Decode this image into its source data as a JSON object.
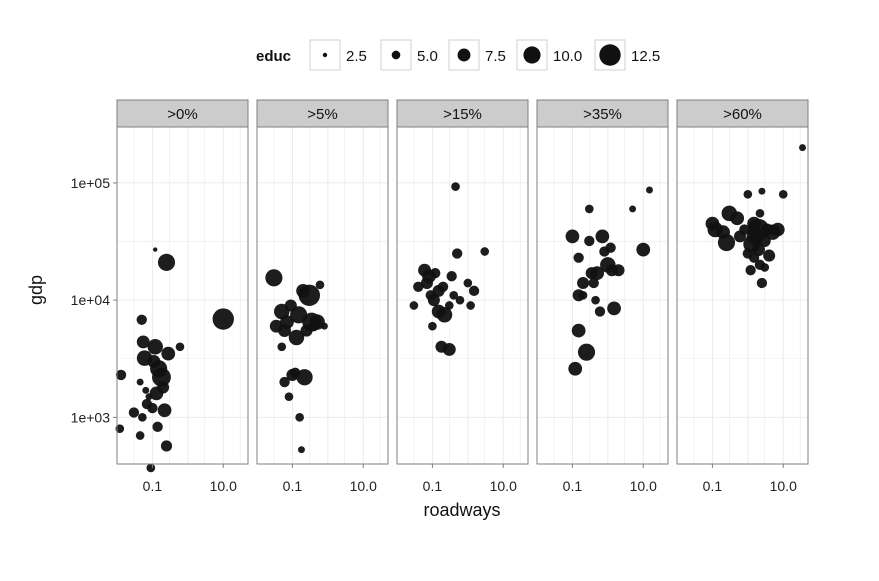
{
  "chart_data": {
    "type": "scatter",
    "xlabel": "roadways",
    "ylabel": "gdp",
    "x_scale": "log10",
    "y_scale": "log10",
    "x_range": [
      0.01,
      50
    ],
    "y_range": [
      400,
      300000
    ],
    "x_ticks": [
      {
        "value": 0.1,
        "label": "0.1"
      },
      {
        "value": 10,
        "label": "10.0"
      }
    ],
    "y_ticks": [
      {
        "value": 1000,
        "label": "1e+03"
      },
      {
        "value": 10000,
        "label": "1e+04"
      },
      {
        "value": 100000,
        "label": "1e+05"
      }
    ],
    "grid": true,
    "legend": {
      "title": "educ",
      "placement": "top",
      "values": [
        2.5,
        5.0,
        7.5,
        10.0,
        12.5
      ],
      "labels": [
        "2.5",
        "5.0",
        "7.5",
        "10.0",
        "12.5"
      ]
    },
    "colors": {
      "point": "#111111",
      "panel_background": "#ffffff",
      "grid": "#ebebeb",
      "strip_background": "#cccccc",
      "frame": "#7f7f7f"
    },
    "panels": [
      {
        "label": ">0%",
        "points": [
          {
            "x": 0.013,
            "y": 2300,
            "educ": 6
          },
          {
            "x": 0.012,
            "y": 800,
            "educ": 5
          },
          {
            "x": 0.03,
            "y": 1100,
            "educ": 6
          },
          {
            "x": 0.045,
            "y": 700,
            "educ": 5
          },
          {
            "x": 0.052,
            "y": 1000,
            "educ": 5
          },
          {
            "x": 0.05,
            "y": 6800,
            "educ": 6
          },
          {
            "x": 0.055,
            "y": 4400,
            "educ": 7.5
          },
          {
            "x": 0.06,
            "y": 3200,
            "educ": 9
          },
          {
            "x": 0.045,
            "y": 2000,
            "educ": 4
          },
          {
            "x": 0.065,
            "y": 1700,
            "educ": 4
          },
          {
            "x": 0.07,
            "y": 1300,
            "educ": 6
          },
          {
            "x": 0.08,
            "y": 1500,
            "educ": 4
          },
          {
            "x": 0.09,
            "y": 370,
            "educ": 5
          },
          {
            "x": 0.1,
            "y": 1200,
            "educ": 6
          },
          {
            "x": 0.11,
            "y": 3000,
            "educ": 7.5
          },
          {
            "x": 0.12,
            "y": 4000,
            "educ": 9
          },
          {
            "x": 0.13,
            "y": 1600,
            "educ": 8
          },
          {
            "x": 0.15,
            "y": 2600,
            "educ": 10
          },
          {
            "x": 0.18,
            "y": 2200,
            "educ": 11
          },
          {
            "x": 0.2,
            "y": 1800,
            "educ": 7
          },
          {
            "x": 0.14,
            "y": 830,
            "educ": 6
          },
          {
            "x": 0.12,
            "y": 27000,
            "educ": 2.5
          },
          {
            "x": 0.22,
            "y": 1150,
            "educ": 8
          },
          {
            "x": 0.25,
            "y": 570,
            "educ": 6.5
          },
          {
            "x": 0.28,
            "y": 3500,
            "educ": 8
          },
          {
            "x": 0.25,
            "y": 21000,
            "educ": 10
          },
          {
            "x": 0.6,
            "y": 4000,
            "educ": 5
          },
          {
            "x": 10,
            "y": 6900,
            "educ": 12.5
          }
        ]
      },
      {
        "label": ">5%",
        "points": [
          {
            "x": 0.03,
            "y": 15500,
            "educ": 10
          },
          {
            "x": 0.035,
            "y": 6000,
            "educ": 7.5
          },
          {
            "x": 0.05,
            "y": 8000,
            "educ": 9
          },
          {
            "x": 0.05,
            "y": 4000,
            "educ": 5
          },
          {
            "x": 0.06,
            "y": 5500,
            "educ": 7.5
          },
          {
            "x": 0.06,
            "y": 2000,
            "educ": 6
          },
          {
            "x": 0.07,
            "y": 6500,
            "educ": 8
          },
          {
            "x": 0.08,
            "y": 1500,
            "educ": 5
          },
          {
            "x": 0.09,
            "y": 9000,
            "educ": 7
          },
          {
            "x": 0.1,
            "y": 2300,
            "educ": 7
          },
          {
            "x": 0.12,
            "y": 2400,
            "educ": 6
          },
          {
            "x": 0.13,
            "y": 4800,
            "educ": 9
          },
          {
            "x": 0.15,
            "y": 7500,
            "educ": 10
          },
          {
            "x": 0.16,
            "y": 1000,
            "educ": 5
          },
          {
            "x": 0.18,
            "y": 530,
            "educ": 4
          },
          {
            "x": 0.2,
            "y": 12000,
            "educ": 8
          },
          {
            "x": 0.22,
            "y": 2200,
            "educ": 9.5
          },
          {
            "x": 0.25,
            "y": 5500,
            "educ": 7
          },
          {
            "x": 0.3,
            "y": 11000,
            "educ": 12.5
          },
          {
            "x": 0.35,
            "y": 6500,
            "educ": 11
          },
          {
            "x": 0.4,
            "y": 6000,
            "educ": 6
          },
          {
            "x": 0.5,
            "y": 6500,
            "educ": 9
          },
          {
            "x": 0.6,
            "y": 13500,
            "educ": 5
          },
          {
            "x": 0.8,
            "y": 6000,
            "educ": 4
          }
        ]
      },
      {
        "label": ">15%",
        "points": [
          {
            "x": 0.03,
            "y": 9000,
            "educ": 5
          },
          {
            "x": 0.04,
            "y": 13000,
            "educ": 6
          },
          {
            "x": 0.06,
            "y": 18000,
            "educ": 7.5
          },
          {
            "x": 0.07,
            "y": 14000,
            "educ": 7
          },
          {
            "x": 0.08,
            "y": 16000,
            "educ": 8
          },
          {
            "x": 0.09,
            "y": 11000,
            "educ": 6
          },
          {
            "x": 0.1,
            "y": 6000,
            "educ": 5
          },
          {
            "x": 0.11,
            "y": 10000,
            "educ": 7
          },
          {
            "x": 0.12,
            "y": 17000,
            "educ": 6
          },
          {
            "x": 0.15,
            "y": 12000,
            "educ": 7
          },
          {
            "x": 0.15,
            "y": 8000,
            "educ": 8
          },
          {
            "x": 0.18,
            "y": 4000,
            "educ": 7
          },
          {
            "x": 0.2,
            "y": 13000,
            "educ": 6
          },
          {
            "x": 0.22,
            "y": 7500,
            "educ": 9
          },
          {
            "x": 0.3,
            "y": 9000,
            "educ": 5
          },
          {
            "x": 0.3,
            "y": 3800,
            "educ": 7.5
          },
          {
            "x": 0.35,
            "y": 16000,
            "educ": 6
          },
          {
            "x": 0.4,
            "y": 11000,
            "educ": 5
          },
          {
            "x": 0.45,
            "y": 93000,
            "educ": 5
          },
          {
            "x": 0.5,
            "y": 25000,
            "educ": 6
          },
          {
            "x": 0.6,
            "y": 10000,
            "educ": 5
          },
          {
            "x": 1.0,
            "y": 14000,
            "educ": 5
          },
          {
            "x": 1.2,
            "y": 9000,
            "educ": 5
          },
          {
            "x": 1.5,
            "y": 12000,
            "educ": 6
          },
          {
            "x": 3,
            "y": 26000,
            "educ": 5
          }
        ]
      },
      {
        "label": ">35%",
        "points": [
          {
            "x": 0.1,
            "y": 35000,
            "educ": 8
          },
          {
            "x": 0.12,
            "y": 2600,
            "educ": 8
          },
          {
            "x": 0.15,
            "y": 5500,
            "educ": 8
          },
          {
            "x": 0.15,
            "y": 23000,
            "educ": 6
          },
          {
            "x": 0.15,
            "y": 11000,
            "educ": 7
          },
          {
            "x": 0.2,
            "y": 14000,
            "educ": 7
          },
          {
            "x": 0.2,
            "y": 11000,
            "educ": 5
          },
          {
            "x": 0.25,
            "y": 3600,
            "educ": 10
          },
          {
            "x": 0.3,
            "y": 32000,
            "educ": 6
          },
          {
            "x": 0.3,
            "y": 60000,
            "educ": 5
          },
          {
            "x": 0.35,
            "y": 17000,
            "educ": 7
          },
          {
            "x": 0.4,
            "y": 14000,
            "educ": 6
          },
          {
            "x": 0.45,
            "y": 10000,
            "educ": 5
          },
          {
            "x": 0.5,
            "y": 17000,
            "educ": 8
          },
          {
            "x": 0.6,
            "y": 8000,
            "educ": 6
          },
          {
            "x": 0.7,
            "y": 35000,
            "educ": 8
          },
          {
            "x": 0.8,
            "y": 26000,
            "educ": 6
          },
          {
            "x": 1.0,
            "y": 20000,
            "educ": 9
          },
          {
            "x": 1.2,
            "y": 28000,
            "educ": 6
          },
          {
            "x": 1.3,
            "y": 18000,
            "educ": 7
          },
          {
            "x": 1.5,
            "y": 8500,
            "educ": 8
          },
          {
            "x": 2.0,
            "y": 18000,
            "educ": 7
          },
          {
            "x": 5,
            "y": 60000,
            "educ": 4
          },
          {
            "x": 10,
            "y": 27000,
            "educ": 8
          },
          {
            "x": 15,
            "y": 87000,
            "educ": 4
          }
        ]
      },
      {
        "label": ">60%",
        "points": [
          {
            "x": 0.1,
            "y": 45000,
            "educ": 8
          },
          {
            "x": 0.12,
            "y": 40000,
            "educ": 9
          },
          {
            "x": 0.2,
            "y": 38000,
            "educ": 8
          },
          {
            "x": 0.25,
            "y": 31000,
            "educ": 10
          },
          {
            "x": 0.3,
            "y": 55000,
            "educ": 9
          },
          {
            "x": 0.5,
            "y": 50000,
            "educ": 8
          },
          {
            "x": 0.6,
            "y": 35000,
            "educ": 7
          },
          {
            "x": 0.8,
            "y": 40000,
            "educ": 6
          },
          {
            "x": 1.0,
            "y": 25000,
            "educ": 6
          },
          {
            "x": 1.0,
            "y": 80000,
            "educ": 5
          },
          {
            "x": 1.2,
            "y": 18000,
            "educ": 6
          },
          {
            "x": 1.3,
            "y": 30000,
            "educ": 10
          },
          {
            "x": 1.5,
            "y": 45000,
            "educ": 8
          },
          {
            "x": 1.5,
            "y": 23000,
            "educ": 6
          },
          {
            "x": 1.6,
            "y": 35000,
            "educ": 10
          },
          {
            "x": 2.0,
            "y": 40000,
            "educ": 12.5
          },
          {
            "x": 2.0,
            "y": 27000,
            "educ": 7.5
          },
          {
            "x": 2.2,
            "y": 55000,
            "educ": 5
          },
          {
            "x": 2.2,
            "y": 20000,
            "educ": 6
          },
          {
            "x": 2.5,
            "y": 14000,
            "educ": 6
          },
          {
            "x": 2.5,
            "y": 85000,
            "educ": 4
          },
          {
            "x": 3,
            "y": 32000,
            "educ": 7
          },
          {
            "x": 3,
            "y": 19000,
            "educ": 5
          },
          {
            "x": 3.5,
            "y": 40000,
            "educ": 7
          },
          {
            "x": 4,
            "y": 24000,
            "educ": 7
          },
          {
            "x": 5,
            "y": 38000,
            "educ": 9
          },
          {
            "x": 7,
            "y": 40000,
            "educ": 8
          },
          {
            "x": 10,
            "y": 80000,
            "educ": 5
          },
          {
            "x": 35,
            "y": 200000,
            "educ": 4
          }
        ]
      }
    ]
  }
}
